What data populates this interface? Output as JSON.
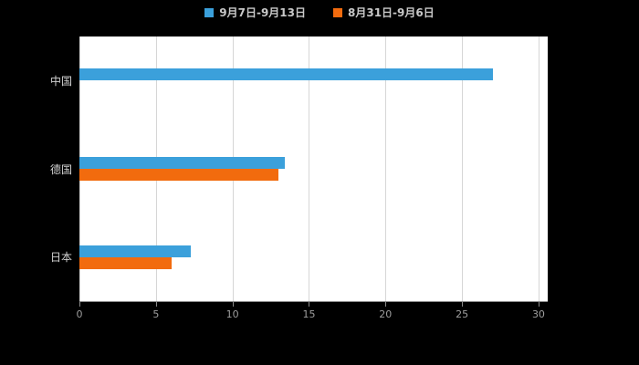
{
  "legend": {
    "items": [
      {
        "label": "9月7日-9月13日",
        "color": "#3BA0DB"
      },
      {
        "label": "8月31日-9月6日",
        "color": "#F26B0E"
      }
    ]
  },
  "chart_data": {
    "type": "bar",
    "orientation": "horizontal",
    "title": "",
    "categories": [
      "中国",
      "德国",
      "日本"
    ],
    "series": [
      {
        "name": "9月7日-9月13日",
        "color": "#3BA0DB",
        "values": [
          27,
          13.4,
          7.3
        ]
      },
      {
        "name": "8月31日-9月6日",
        "color": "#F26B0E",
        "values": [
          0,
          13,
          6
        ]
      }
    ],
    "xlim": [
      0,
      30
    ],
    "xticks": [
      0,
      5,
      10,
      15,
      20,
      25,
      30
    ],
    "grid": true,
    "legend_position": "top",
    "plot_background": "#FFFFFF",
    "page_background": "#000000",
    "grid_color": "#D6D6D6",
    "axis_color": "#8A8A8A"
  }
}
